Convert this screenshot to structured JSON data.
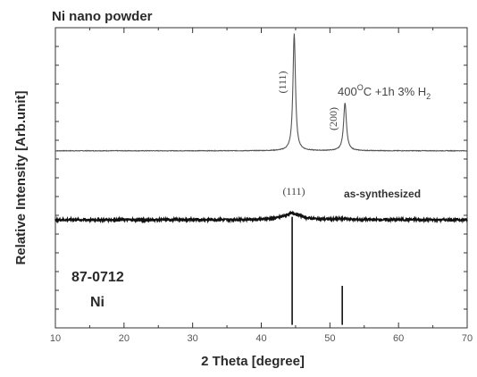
{
  "chart_data": {
    "type": "line",
    "title": "Ni nano powder",
    "xlabel": "2 Theta [degree]",
    "ylabel": "Relative Intensity [Arb.unit]",
    "xlim": [
      10,
      70
    ],
    "x_ticks": [
      10,
      20,
      30,
      40,
      50,
      60,
      70
    ],
    "x_tick_labels": [
      "10",
      "20",
      "30",
      "40",
      "50",
      "60",
      "70"
    ],
    "ylim": [
      0,
      100
    ],
    "y_ticks_shown": false,
    "grid": false,
    "series": [
      {
        "name": "400°C +1h 3% H2",
        "baseline": 59,
        "peaks": [
          {
            "x": 44.8,
            "height": 39,
            "width": 0.22
          },
          {
            "x": 52.2,
            "height": 16,
            "width": 0.25
          }
        ],
        "noise": 0.1,
        "color": "#555555"
      },
      {
        "name": "as-synthesized",
        "baseline": 36,
        "peaks": [
          {
            "x": 44.5,
            "height": 2.2,
            "width": 1.5
          },
          {
            "x": 52.0,
            "height": 0.3,
            "width": 1.0
          }
        ],
        "noise": 0.35,
        "color": "#111111"
      },
      {
        "name": "87-0712 Ni",
        "type": "stick",
        "baseline": 1,
        "x": [
          44.5,
          51.8
        ],
        "y": [
          36,
          13
        ],
        "color": "#111111"
      }
    ],
    "annotations": {
      "treated": {
        "label_prefix": "400",
        "label_sup": "O",
        "label_mid": "C +1h 3% H",
        "label_sub": "2"
      },
      "as_synth": "as-synthesized",
      "miller_111_top": "(111)",
      "miller_200_top": "(200)",
      "miller_111_mid": "(111)",
      "ref_code": "87-0712",
      "ref_element": "Ni"
    }
  }
}
